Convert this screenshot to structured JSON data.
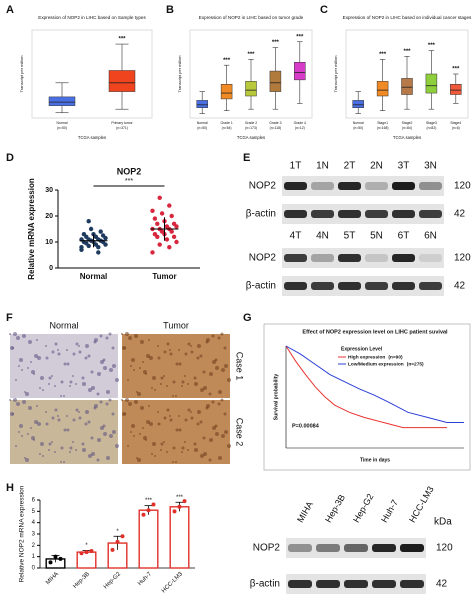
{
  "panel_labels": [
    "A",
    "B",
    "C",
    "D",
    "E",
    "F",
    "G",
    "H"
  ],
  "chart_data": [
    {
      "type": "box",
      "title": "Expression of NOP2 in LIHC based on Sample types",
      "xlabel": "TCGA samples",
      "ylabel": "Transcript per million",
      "categories": [
        "Normal",
        "Primary tumor"
      ],
      "counts": [
        "(n=50)",
        "(n=371)"
      ],
      "ylim": [
        0,
        50
      ],
      "boxes": [
        {
          "min": 3,
          "q1": 7,
          "median": 9,
          "q3": 12,
          "max": 20,
          "color": "#4a6fe3"
        },
        {
          "min": 5,
          "q1": 15,
          "median": 20,
          "q3": 27,
          "max": 42,
          "color": "#f0441f"
        }
      ],
      "significance": [
        null,
        "***"
      ]
    },
    {
      "type": "box",
      "title": "Expression of NOP2 in LIHC based on tumor grade",
      "xlabel": "TCGA samples",
      "ylabel": "Transcript per million",
      "categories": [
        "Normal",
        "Grade 1",
        "Grade 2",
        "Grade 3",
        "Grade 4"
      ],
      "counts": [
        "(n=50)",
        "(n=54)",
        "(n=173)",
        "(n=118)",
        "(n=12)"
      ],
      "ylim": [
        0,
        60
      ],
      "boxes": [
        {
          "min": 3,
          "q1": 7,
          "median": 9,
          "q3": 12,
          "max": 18,
          "color": "#4a6fe3"
        },
        {
          "min": 5,
          "q1": 13,
          "median": 17,
          "q3": 23,
          "max": 36,
          "color": "#f08a24"
        },
        {
          "min": 6,
          "q1": 15,
          "median": 19,
          "q3": 25,
          "max": 40,
          "color": "#b8c83a"
        },
        {
          "min": 6,
          "q1": 18,
          "median": 24,
          "q3": 32,
          "max": 48,
          "color": "#b07a3c"
        },
        {
          "min": 10,
          "q1": 26,
          "median": 31,
          "q3": 38,
          "max": 52,
          "color": "#d63cc8"
        }
      ],
      "significance": [
        null,
        "***",
        "***",
        "***",
        "***"
      ]
    },
    {
      "type": "box",
      "title": "Expression of NOP2 in LIHC based on individual cancer stages",
      "xlabel": "TCGA samples",
      "ylabel": "Transcript per million",
      "categories": [
        "Normal",
        "Stage1",
        "Stage2",
        "Stage3",
        "Stage4"
      ],
      "counts": [
        "(n=50)",
        "(n=168)",
        "(n=84)",
        "(n=82)",
        "(n=6)"
      ],
      "ylim": [
        0,
        60
      ],
      "boxes": [
        {
          "min": 3,
          "q1": 7,
          "median": 9,
          "q3": 12,
          "max": 18,
          "color": "#4a6fe3"
        },
        {
          "min": 5,
          "q1": 15,
          "median": 19,
          "q3": 25,
          "max": 40,
          "color": "#f08a24"
        },
        {
          "min": 6,
          "q1": 16,
          "median": 21,
          "q3": 27,
          "max": 42,
          "color": "#b5794a"
        },
        {
          "min": 6,
          "q1": 17,
          "median": 22,
          "q3": 30,
          "max": 46,
          "color": "#8fcf3c"
        },
        {
          "min": 10,
          "q1": 16,
          "median": 19,
          "q3": 23,
          "max": 30,
          "color": "#f05a3a"
        }
      ],
      "significance": [
        null,
        "***",
        "***",
        "***",
        "***"
      ]
    },
    {
      "type": "strip",
      "title": "NOP2",
      "ylabel": "Relative mRNA expression",
      "categories": [
        "Normal",
        "Tumor"
      ],
      "ylim": [
        0,
        30
      ],
      "yticks": [
        0,
        10,
        20,
        30
      ],
      "series": [
        {
          "name": "Normal",
          "color": "#1f3a5f",
          "values": [
            7,
            8,
            8.5,
            9,
            9,
            9.5,
            10,
            10,
            10,
            10.5,
            10.5,
            11,
            11,
            11,
            11.5,
            12,
            12,
            12.5,
            13,
            13,
            14,
            15,
            8,
            6,
            18
          ],
          "mean": 10.5,
          "sd": 2.5
        },
        {
          "name": "Tumor",
          "color": "#d7263d",
          "values": [
            6,
            8,
            9,
            10,
            11,
            12,
            12,
            13,
            13,
            14,
            14,
            15,
            15,
            15,
            16,
            16,
            17,
            17,
            18,
            19,
            20,
            21,
            22,
            24,
            27
          ],
          "mean": 15,
          "sd": 4.5
        }
      ],
      "significance": "***"
    },
    {
      "type": "line",
      "title": "Effect of NOP2 expression level on LIHC patient suvival",
      "xlabel": "Time in days",
      "ylabel": "Survival probability",
      "legend_title": "Expression Level",
      "annotation": "P=0.00084",
      "xlim": [
        0,
        3650
      ],
      "ylim": [
        0,
        1
      ],
      "series": [
        {
          "name": "High expression",
          "n": "(n=90)",
          "color": "#e8332f",
          "x": [
            0,
            200,
            400,
            600,
            800,
            1000,
            1300,
            1600,
            2000,
            2400,
            2800,
            3300
          ],
          "values": [
            1,
            0.85,
            0.72,
            0.6,
            0.5,
            0.42,
            0.35,
            0.3,
            0.25,
            0.2,
            0.2,
            0.2
          ]
        },
        {
          "name": "Low/Medium expression",
          "n": "(n=275)",
          "color": "#2b3fd6",
          "x": [
            0,
            300,
            600,
            900,
            1200,
            1500,
            1800,
            2100,
            2500,
            2900,
            3300,
            3650
          ],
          "values": [
            1,
            0.92,
            0.82,
            0.72,
            0.65,
            0.58,
            0.52,
            0.45,
            0.35,
            0.3,
            0.25,
            0.25
          ]
        }
      ]
    },
    {
      "type": "bar",
      "ylabel": "Relative NOP2 mRNA expression",
      "categories": [
        "MIHA",
        "Hep-3B",
        "Hep-G2",
        "Huh-7",
        "HCC-LM3"
      ],
      "ylim": [
        0,
        6
      ],
      "yticks": [
        0,
        1,
        2,
        3,
        4,
        5,
        6
      ],
      "color": "#e0302a",
      "values": [
        0.8,
        1.4,
        2.2,
        5.1,
        5.4
      ],
      "errors": [
        0.3,
        0.15,
        0.6,
        0.4,
        0.4
      ],
      "points": [
        [
          0.5,
          1.0,
          0.8
        ],
        [
          1.3,
          1.4,
          1.5
        ],
        [
          1.6,
          2.3,
          2.8
        ],
        [
          4.7,
          5.1,
          5.6
        ],
        [
          5.0,
          5.4,
          5.9
        ]
      ],
      "significance": [
        null,
        "*",
        "*",
        "***",
        "***"
      ]
    }
  ],
  "blots": [
    {
      "lanes": [
        "1T",
        "1N",
        "2T",
        "2N",
        "3T",
        "3N"
      ],
      "rows": [
        {
          "label": "NOP2",
          "size": "120"
        },
        {
          "label": "β-actin",
          "size": "42"
        }
      ]
    },
    {
      "lanes": [
        "4T",
        "4N",
        "5T",
        "5N",
        "6T",
        "6N"
      ],
      "rows": [
        {
          "label": "NOP2",
          "size": "120"
        },
        {
          "label": "β-actin",
          "size": "42"
        }
      ]
    },
    {
      "lanes": [
        "MIHA",
        "Hep-3B",
        "Hep-G2",
        "Huh-7",
        "HCC-LM3"
      ],
      "unit": "kDa",
      "rows": [
        {
          "label": "NOP2",
          "size": "120"
        },
        {
          "label": "β-actin",
          "size": "42"
        }
      ]
    }
  ],
  "ihc": {
    "columns": [
      "Normal",
      "Tumor"
    ],
    "rows": [
      "Case 1",
      "Case 2"
    ]
  }
}
